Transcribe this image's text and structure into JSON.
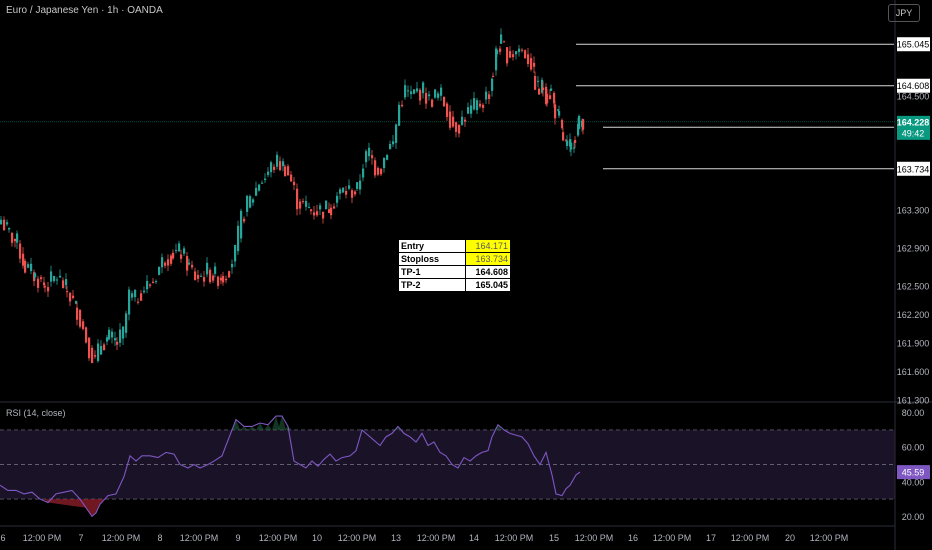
{
  "header": {
    "title": "Euro / Japanese Yen · 1h · OANDA",
    "currency_button": "JPY"
  },
  "rsi": {
    "title": "RSI (14, close)",
    "value_label": "45.59"
  },
  "info_table": [
    {
      "key": "Entry",
      "value": "164.171",
      "highlight": true
    },
    {
      "key": "Stoploss",
      "value": "163.734",
      "highlight": true
    },
    {
      "key": "TP-1",
      "value": "164.608",
      "highlight": false
    },
    {
      "key": "TP-2",
      "value": "165.045",
      "highlight": false
    }
  ],
  "colors": {
    "up": "#26a69a",
    "down": "#ef5350",
    "rsi_line": "#7e57c2",
    "current_price": "#089981"
  },
  "chart_data": [
    {
      "type": "candlestick",
      "title": "Euro / Japanese Yen · 1h · OANDA",
      "ylim": [
        161.3,
        165.3
      ],
      "y_ticks": [
        "164.500",
        "163.300",
        "162.900",
        "162.500",
        "162.200",
        "161.900",
        "161.600",
        "161.300"
      ],
      "x_ticks": [
        "6",
        "12:00 PM",
        "7",
        "12:00 PM",
        "8",
        "12:00 PM",
        "9",
        "12:00 PM",
        "10",
        "12:00 PM",
        "13",
        "12:00 PM",
        "14",
        "12:00 PM",
        "15",
        "12:00 PM",
        "16",
        "12:00 PM",
        "17",
        "12:00 PM",
        "20",
        "12:00 PM"
      ],
      "x_tick_fractions": [
        0.0,
        0.085,
        0.17,
        0.255,
        0.34,
        0.425,
        0.51,
        0.595,
        0.68,
        0.765,
        0.85,
        0.935,
        1.02,
        1.105,
        1.19,
        1.275,
        1.36,
        1.445,
        1.53,
        1.615,
        1.7,
        1.785
      ],
      "levels": [
        {
          "name": "TP-2",
          "value": 165.045,
          "label": "165.045"
        },
        {
          "name": "TP-1",
          "value": 164.608,
          "label": "164.608"
        },
        {
          "name": "Entry",
          "value": 164.171,
          "label": "164.171"
        },
        {
          "name": "Stoploss",
          "value": 163.734,
          "label": "163.734"
        }
      ],
      "current_price": {
        "value": 164.228,
        "label": "164.228",
        "countdown": "49:42"
      },
      "close_path": [
        [
          0,
          163.2
        ],
        [
          8,
          163.05
        ],
        [
          16,
          162.95
        ],
        [
          24,
          162.7
        ],
        [
          34,
          162.6
        ],
        [
          44,
          162.5
        ],
        [
          56,
          162.6
        ],
        [
          66,
          162.45
        ],
        [
          76,
          162.25
        ],
        [
          82,
          162.05
        ],
        [
          88,
          161.85
        ],
        [
          94,
          161.7
        ],
        [
          100,
          161.9
        ],
        [
          108,
          161.95
        ],
        [
          116,
          161.9
        ],
        [
          122,
          162.0
        ],
        [
          128,
          162.4
        ],
        [
          134,
          162.35
        ],
        [
          140,
          162.45
        ],
        [
          146,
          162.5
        ],
        [
          152,
          162.55
        ],
        [
          158,
          162.7
        ],
        [
          164,
          162.8
        ],
        [
          172,
          162.85
        ],
        [
          180,
          162.85
        ],
        [
          188,
          162.7
        ],
        [
          194,
          162.6
        ],
        [
          200,
          162.6
        ],
        [
          206,
          162.65
        ],
        [
          214,
          162.6
        ],
        [
          222,
          162.6
        ],
        [
          228,
          162.7
        ],
        [
          234,
          162.85
        ],
        [
          240,
          163.2
        ],
        [
          246,
          163.35
        ],
        [
          252,
          163.45
        ],
        [
          258,
          163.6
        ],
        [
          264,
          163.65
        ],
        [
          270,
          163.75
        ],
        [
          276,
          163.8
        ],
        [
          284,
          163.75
        ],
        [
          290,
          163.6
        ],
        [
          296,
          163.4
        ],
        [
          302,
          163.35
        ],
        [
          310,
          163.3
        ],
        [
          316,
          163.3
        ],
        [
          322,
          163.3
        ],
        [
          330,
          163.35
        ],
        [
          336,
          163.45
        ],
        [
          342,
          163.5
        ],
        [
          348,
          163.5
        ],
        [
          356,
          163.5
        ],
        [
          362,
          163.8
        ],
        [
          368,
          163.9
        ],
        [
          374,
          163.75
        ],
        [
          380,
          163.75
        ],
        [
          386,
          163.95
        ],
        [
          392,
          164.0
        ],
        [
          398,
          164.4
        ],
        [
          404,
          164.55
        ],
        [
          410,
          164.5
        ],
        [
          416,
          164.55
        ],
        [
          422,
          164.55
        ],
        [
          428,
          164.45
        ],
        [
          434,
          164.5
        ],
        [
          440,
          164.5
        ],
        [
          446,
          164.35
        ],
        [
          452,
          164.2
        ],
        [
          458,
          164.2
        ],
        [
          464,
          164.3
        ],
        [
          470,
          164.35
        ],
        [
          476,
          164.4
        ],
        [
          482,
          164.45
        ],
        [
          488,
          164.55
        ],
        [
          492,
          164.75
        ],
        [
          496,
          165.0
        ],
        [
          500,
          165.05
        ],
        [
          506,
          164.95
        ],
        [
          512,
          164.95
        ],
        [
          518,
          165.0
        ],
        [
          524,
          164.95
        ],
        [
          530,
          164.85
        ],
        [
          534,
          164.65
        ],
        [
          538,
          164.55
        ],
        [
          542,
          164.6
        ],
        [
          546,
          164.5
        ],
        [
          550,
          164.55
        ],
        [
          554,
          164.35
        ],
        [
          558,
          164.25
        ],
        [
          562,
          164.05
        ],
        [
          566,
          163.95
        ],
        [
          570,
          163.95
        ],
        [
          574,
          164.1
        ],
        [
          578,
          164.2
        ],
        [
          582,
          164.25
        ]
      ]
    },
    {
      "type": "line",
      "title": "RSI (14, close)",
      "ylim": [
        15,
        85
      ],
      "y_ticks": [
        "80.00",
        "60.00",
        "40.00",
        "20.00"
      ],
      "bands": [
        70,
        50,
        30
      ],
      "points": [
        [
          0,
          38
        ],
        [
          8,
          35
        ],
        [
          16,
          35
        ],
        [
          24,
          33
        ],
        [
          32,
          34
        ],
        [
          40,
          30
        ],
        [
          48,
          28
        ],
        [
          56,
          33
        ],
        [
          64,
          34
        ],
        [
          72,
          35
        ],
        [
          80,
          30
        ],
        [
          86,
          25
        ],
        [
          92,
          20
        ],
        [
          96,
          22
        ],
        [
          100,
          27
        ],
        [
          108,
          32
        ],
        [
          116,
          33
        ],
        [
          124,
          43
        ],
        [
          130,
          55
        ],
        [
          136,
          52
        ],
        [
          142,
          55
        ],
        [
          150,
          55
        ],
        [
          158,
          54
        ],
        [
          166,
          57
        ],
        [
          174,
          56
        ],
        [
          180,
          50
        ],
        [
          188,
          48
        ],
        [
          194,
          50
        ],
        [
          200,
          48
        ],
        [
          208,
          50
        ],
        [
          214,
          52
        ],
        [
          222,
          55
        ],
        [
          228,
          64
        ],
        [
          236,
          76
        ],
        [
          244,
          72
        ],
        [
          252,
          72
        ],
        [
          260,
          74
        ],
        [
          268,
          73
        ],
        [
          276,
          78
        ],
        [
          282,
          78
        ],
        [
          288,
          72
        ],
        [
          294,
          52
        ],
        [
          300,
          50
        ],
        [
          306,
          48
        ],
        [
          312,
          52
        ],
        [
          318,
          49
        ],
        [
          324,
          53
        ],
        [
          330,
          56
        ],
        [
          336,
          52
        ],
        [
          342,
          54
        ],
        [
          350,
          55
        ],
        [
          356,
          58
        ],
        [
          362,
          70
        ],
        [
          368,
          67
        ],
        [
          374,
          64
        ],
        [
          380,
          61
        ],
        [
          386,
          66
        ],
        [
          392,
          68
        ],
        [
          398,
          72
        ],
        [
          404,
          68
        ],
        [
          410,
          66
        ],
        [
          416,
          63
        ],
        [
          422,
          68
        ],
        [
          428,
          61
        ],
        [
          434,
          63
        ],
        [
          440,
          57
        ],
        [
          446,
          55
        ],
        [
          452,
          50
        ],
        [
          458,
          48
        ],
        [
          464,
          54
        ],
        [
          470,
          52
        ],
        [
          476,
          55
        ],
        [
          482,
          57
        ],
        [
          488,
          58
        ],
        [
          492,
          66
        ],
        [
          498,
          73
        ],
        [
          504,
          70
        ],
        [
          510,
          68
        ],
        [
          516,
          67
        ],
        [
          522,
          66
        ],
        [
          528,
          62
        ],
        [
          534,
          55
        ],
        [
          540,
          50
        ],
        [
          546,
          57
        ],
        [
          552,
          44
        ],
        [
          556,
          33
        ],
        [
          562,
          32
        ],
        [
          566,
          36
        ],
        [
          570,
          38
        ],
        [
          576,
          44
        ],
        [
          580,
          45.59
        ]
      ]
    }
  ]
}
